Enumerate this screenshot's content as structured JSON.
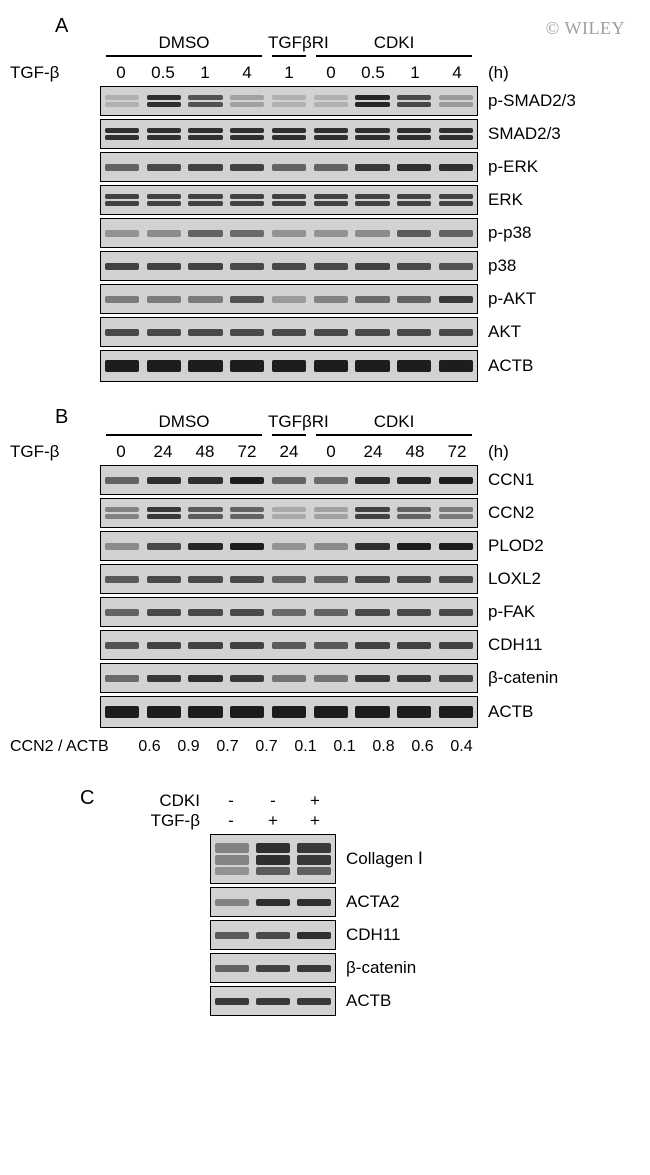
{
  "watermark": "© WILEY",
  "labels": {
    "panelA": "A",
    "panelB": "B",
    "panelC": "C",
    "tgfb": "TGF-β",
    "hours": "(h)",
    "cdki": "CDKI",
    "quant_label": "CCN2 / ACTB"
  },
  "panelA": {
    "laneW": 42,
    "groups": [
      {
        "name": "DMSO",
        "span": 4,
        "bar": true
      },
      {
        "name": "TGFβRI",
        "span": 1,
        "bar": true,
        "short": true
      },
      {
        "name": "CDKI",
        "span": 4,
        "bar": true
      }
    ],
    "times": [
      "0",
      "0.5",
      "1",
      "4",
      "1",
      "0",
      "0.5",
      "1",
      "4"
    ],
    "rows": [
      {
        "label": "p-SMAD2/3",
        "double": true,
        "ints": [
          0.05,
          0.85,
          0.65,
          0.15,
          0.05,
          0.05,
          0.9,
          0.7,
          0.2
        ]
      },
      {
        "label": "SMAD2/3",
        "double": true,
        "ints": [
          0.85,
          0.85,
          0.85,
          0.85,
          0.85,
          0.85,
          0.85,
          0.85,
          0.85
        ]
      },
      {
        "label": "p-ERK",
        "ints": [
          0.55,
          0.7,
          0.75,
          0.75,
          0.55,
          0.55,
          0.8,
          0.85,
          0.85
        ]
      },
      {
        "label": "ERK",
        "double": true,
        "ints": [
          0.75,
          0.75,
          0.75,
          0.75,
          0.75,
          0.75,
          0.75,
          0.75,
          0.75
        ]
      },
      {
        "label": "p-p38",
        "ints": [
          0.25,
          0.3,
          0.55,
          0.5,
          0.25,
          0.25,
          0.3,
          0.6,
          0.55
        ]
      },
      {
        "label": "p38",
        "ints": [
          0.75,
          0.75,
          0.75,
          0.7,
          0.7,
          0.7,
          0.75,
          0.7,
          0.65
        ]
      },
      {
        "label": "p-AKT",
        "ints": [
          0.4,
          0.4,
          0.4,
          0.65,
          0.2,
          0.35,
          0.5,
          0.55,
          0.8
        ]
      },
      {
        "label": "AKT",
        "ints": [
          0.7,
          0.7,
          0.7,
          0.7,
          0.7,
          0.7,
          0.7,
          0.7,
          0.7
        ]
      },
      {
        "label": "ACTB",
        "thick": true,
        "ints": [
          0.95,
          0.95,
          0.95,
          0.95,
          0.95,
          0.95,
          0.95,
          0.95,
          0.95
        ]
      }
    ]
  },
  "panelB": {
    "laneW": 42,
    "groups": [
      {
        "name": "DMSO",
        "span": 4,
        "bar": true
      },
      {
        "name": "TGFβRI",
        "span": 1,
        "bar": true,
        "short": true
      },
      {
        "name": "CDKI",
        "span": 4,
        "bar": true
      }
    ],
    "times": [
      "0",
      "24",
      "48",
      "72",
      "24",
      "0",
      "24",
      "48",
      "72"
    ],
    "rows": [
      {
        "label": "CCN1",
        "ints": [
          0.55,
          0.85,
          0.85,
          0.95,
          0.55,
          0.5,
          0.85,
          0.9,
          0.95
        ]
      },
      {
        "label": "CCN2",
        "double": true,
        "ints": [
          0.35,
          0.8,
          0.6,
          0.55,
          0.1,
          0.15,
          0.75,
          0.55,
          0.4
        ]
      },
      {
        "label": "PLOD2",
        "ints": [
          0.3,
          0.7,
          0.9,
          0.95,
          0.25,
          0.3,
          0.85,
          0.95,
          0.95
        ]
      },
      {
        "label": "LOXL2",
        "ints": [
          0.6,
          0.7,
          0.7,
          0.7,
          0.55,
          0.55,
          0.7,
          0.7,
          0.7
        ]
      },
      {
        "label": "p-FAK",
        "ints": [
          0.55,
          0.7,
          0.7,
          0.7,
          0.5,
          0.55,
          0.7,
          0.7,
          0.7
        ]
      },
      {
        "label": "CDH11",
        "ints": [
          0.65,
          0.75,
          0.75,
          0.75,
          0.6,
          0.6,
          0.75,
          0.75,
          0.75
        ]
      },
      {
        "label": "β-catenin",
        "ints": [
          0.5,
          0.8,
          0.85,
          0.8,
          0.45,
          0.45,
          0.8,
          0.8,
          0.75
        ]
      },
      {
        "label": "ACTB",
        "thick": true,
        "ints": [
          0.95,
          0.95,
          0.95,
          0.95,
          0.95,
          0.95,
          0.95,
          0.95,
          0.95
        ]
      }
    ],
    "quant": [
      "0.6",
      "0.9",
      "0.7",
      "0.7",
      "0.1",
      "0.1",
      "0.8",
      "0.6",
      "0.4"
    ]
  },
  "panelC": {
    "laneW": 42,
    "conds": [
      {
        "label": "CDKI",
        "vals": [
          "-",
          "-",
          "+"
        ]
      },
      {
        "label": "TGF-β",
        "vals": [
          "-",
          "+",
          "+"
        ]
      }
    ],
    "rows": [
      {
        "label": "Collagen Ⅰ",
        "tall": true,
        "double": true,
        "ints": [
          0.35,
          0.85,
          0.8
        ]
      },
      {
        "label": "ACTA2",
        "ints": [
          0.35,
          0.85,
          0.85
        ]
      },
      {
        "label": "CDH11",
        "ints": [
          0.6,
          0.7,
          0.85
        ]
      },
      {
        "label": "β-catenin",
        "ints": [
          0.55,
          0.75,
          0.8
        ]
      },
      {
        "label": "ACTB",
        "ints": [
          0.8,
          0.8,
          0.8
        ]
      }
    ]
  },
  "style": {
    "band_color": "#2d2d2d",
    "bg_blot": "#d5d5d5",
    "border_color": "#000000",
    "font_size_label": 17
  }
}
